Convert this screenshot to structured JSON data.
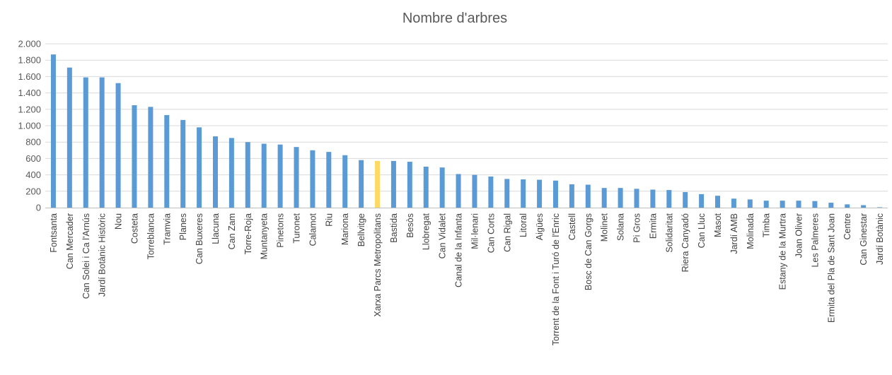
{
  "chart_data": {
    "type": "bar",
    "title": "Nombre d'arbres",
    "xlabel": "",
    "ylabel": "",
    "ylim": [
      0,
      2000
    ],
    "yticks": [
      0,
      200,
      400,
      600,
      800,
      1000,
      1200,
      1400,
      1600,
      1800,
      2000
    ],
    "ytick_labels": [
      "0",
      "200",
      "400",
      "600",
      "800",
      "1.000",
      "1.200",
      "1.400",
      "1.600",
      "1.800",
      "2.000"
    ],
    "grid": true,
    "legend": "none",
    "colors": {
      "bar": "#5b9bd5",
      "highlight": "#ffd966"
    },
    "highlight_category": "Xarxa Parcs Metropolitans",
    "categories": [
      "Fontsanta",
      "Can Mercader",
      "Can Solei i Ca l'Arnús",
      "Jardí Botànic Històric",
      "Nou",
      "Costeta",
      "Torreblanca",
      "Tramvia",
      "Planes",
      "Can Buxeres",
      "Llacuna",
      "Can Zam",
      "Torre-Roja",
      "Muntanyeta",
      "Pinetons",
      "Turonet",
      "Calamot",
      "Riu",
      "Mariona",
      "Bellvitge",
      "Xarxa Parcs Metropolitans",
      "Bastida",
      "Besòs",
      "Llobregat",
      "Can Vidalet",
      "Canal de la Infanta",
      "Mil·lenari",
      "Can Corts",
      "Can Rigal",
      "Litoral",
      "Aigües",
      "Torrent de la Font i Turó de l'Enric",
      "Castell",
      "Bosc de Can Gorgs",
      "Molinet",
      "Solana",
      "Pi Gros",
      "Ermita",
      "Solidaritat",
      "Riera Canyadó",
      "Can Lluc",
      "Masot",
      "Jardí AMB",
      "Molinada",
      "Timba",
      "Estany de la Murtra",
      "Joan Oliver",
      "Les Palmeres",
      "Ermita del Pla de Sant Joan",
      "Centre",
      "Can Ginestar",
      "Jardí Botànic"
    ],
    "values": [
      1870,
      1710,
      1590,
      1590,
      1520,
      1250,
      1230,
      1130,
      1070,
      980,
      870,
      850,
      800,
      780,
      770,
      740,
      700,
      680,
      640,
      580,
      570,
      570,
      560,
      500,
      490,
      410,
      400,
      380,
      350,
      345,
      340,
      330,
      285,
      280,
      240,
      240,
      230,
      220,
      215,
      190,
      165,
      145,
      110,
      100,
      85,
      85,
      85,
      80,
      60,
      40,
      30,
      5
    ]
  }
}
